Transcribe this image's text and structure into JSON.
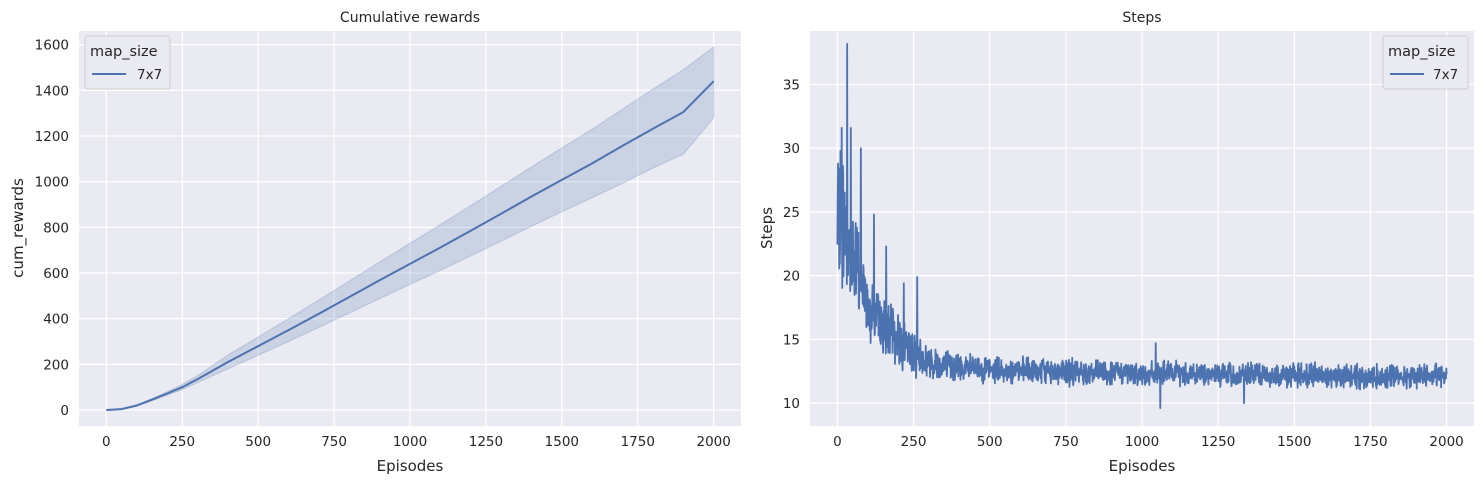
{
  "chart_data": [
    {
      "type": "line",
      "title": "Cumulative rewards",
      "xlabel": "Episodes",
      "ylabel": "cum_rewards",
      "xlim": [
        -90,
        2090
      ],
      "ylim": [
        -70,
        1660
      ],
      "xticks": [
        0,
        250,
        500,
        750,
        1000,
        1250,
        1500,
        1750,
        2000
      ],
      "yticks": [
        0,
        200,
        400,
        600,
        800,
        1000,
        1200,
        1400,
        1600
      ],
      "grid": true,
      "legend": {
        "title": "map_size",
        "entries": [
          "7x7"
        ],
        "placement": "top-left"
      },
      "series": [
        {
          "name": "7x7",
          "color": "#4c72b0",
          "x": [
            0,
            50,
            100,
            150,
            200,
            250,
            300,
            400,
            500,
            600,
            700,
            800,
            900,
            1000,
            1100,
            1200,
            1300,
            1400,
            1500,
            1600,
            1700,
            1800,
            1900,
            2000
          ],
          "y": [
            0,
            4,
            20,
            45,
            72,
            100,
            135,
            210,
            280,
            350,
            422,
            495,
            568,
            640,
            712,
            785,
            860,
            935,
            1008,
            1080,
            1157,
            1232,
            1305,
            1440
          ],
          "lower": [
            0,
            3,
            18,
            40,
            65,
            90,
            120,
            180,
            240,
            300,
            362,
            425,
            488,
            550,
            612,
            675,
            740,
            805,
            868,
            930,
            993,
            1060,
            1120,
            1280
          ],
          "upper": [
            0,
            5,
            22,
            50,
            80,
            112,
            150,
            240,
            320,
            400,
            482,
            565,
            648,
            730,
            812,
            895,
            980,
            1065,
            1148,
            1230,
            1318,
            1405,
            1490,
            1590
          ]
        }
      ]
    },
    {
      "type": "line",
      "title": "Steps",
      "xlabel": "Episodes",
      "ylabel": "Steps",
      "xlim": [
        -90,
        2090
      ],
      "ylim": [
        8.2,
        39.2
      ],
      "xticks": [
        0,
        250,
        500,
        750,
        1000,
        1250,
        1500,
        1750,
        2000
      ],
      "yticks": [
        10,
        15,
        20,
        25,
        30,
        35
      ],
      "grid": true,
      "legend": {
        "title": "map_size",
        "entries": [
          "7x7"
        ],
        "placement": "top-right"
      },
      "series": [
        {
          "name": "7x7",
          "color": "#4c72b0",
          "x": [
            0,
            10,
            20,
            30,
            40,
            50,
            60,
            70,
            80,
            90,
            100,
            110,
            120,
            130,
            140,
            150,
            175,
            200,
            225,
            250,
            275,
            300,
            350,
            400,
            500,
            600,
            700,
            800,
            900,
            1000,
            1100,
            1200,
            1300,
            1400,
            1500,
            1600,
            1700,
            1800,
            1900,
            2000
          ],
          "y": [
            23,
            25,
            24,
            23.5,
            22,
            21.5,
            21,
            20,
            19.5,
            18.5,
            18,
            17.5,
            17,
            16.5,
            16.2,
            16,
            15.5,
            15,
            14.5,
            14,
            13.6,
            13.3,
            13,
            12.8,
            12.6,
            12.5,
            12.5,
            12.4,
            12.4,
            12.3,
            12.3,
            12.3,
            12.2,
            12.2,
            12.2,
            12.2,
            12.1,
            12.1,
            12.1,
            12.2
          ],
          "noise": [
            5.5,
            6.5,
            6.5,
            6,
            5.5,
            5,
            4.5,
            4.2,
            4,
            3.5,
            3.2,
            3,
            2.8,
            2.6,
            2.5,
            2.5,
            2.4,
            2.3,
            2.2,
            2.1,
            2,
            1.6,
            1.4,
            1.3,
            1.2,
            1.2,
            1.2,
            1.2,
            1.1,
            1.1,
            1.1,
            1.1,
            1.1,
            1.1,
            1.1,
            1.1,
            1.1,
            1.1,
            1.1,
            1.1
          ],
          "peaks": [
            [
              2,
              28.8
            ],
            [
              14,
              31.6
            ],
            [
              32,
              38.2
            ],
            [
              44,
              31.6
            ],
            [
              77,
              30.0
            ],
            [
              120,
              24.8
            ],
            [
              160,
              22.3
            ],
            [
              218,
              19.4
            ],
            [
              262,
              19.9
            ],
            [
              1060,
              9.6
            ],
            [
              1335,
              10.0
            ],
            [
              1045,
              14.7
            ]
          ]
        }
      ]
    }
  ]
}
